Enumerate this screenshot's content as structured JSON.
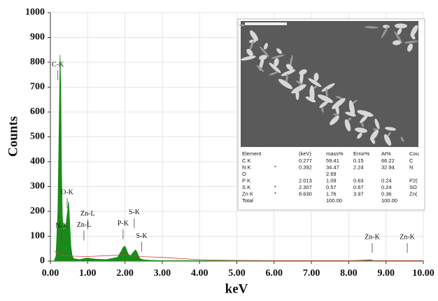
{
  "chart_data": {
    "type": "area",
    "xlabel": "keV",
    "ylabel": "Counts",
    "xlim": [
      0,
      10
    ],
    "ylim": [
      0,
      1000
    ],
    "xticks": [
      {
        "value": 0,
        "label": "0.00"
      },
      {
        "value": 1,
        "label": "1.00"
      },
      {
        "value": 2,
        "label": "2.00"
      },
      {
        "value": 3,
        "label": "3.00"
      },
      {
        "value": 4,
        "label": "4.00"
      },
      {
        "value": 5,
        "label": "5.00"
      },
      {
        "value": 6,
        "label": "6.00"
      },
      {
        "value": 7,
        "label": "7.00"
      },
      {
        "value": 8,
        "label": "8.00"
      },
      {
        "value": 9,
        "label": "9.00"
      },
      {
        "value": 10,
        "label": "10.00"
      }
    ],
    "yticks": [
      0,
      100,
      200,
      300,
      400,
      500,
      600,
      700,
      800,
      900,
      1000
    ],
    "grid": true,
    "series": [
      {
        "color": "#1a8a1a",
        "fill": true,
        "x": [
          0.1,
          0.15,
          0.2,
          0.24,
          0.26,
          0.28,
          0.3,
          0.32,
          0.35,
          0.37,
          0.39,
          0.41,
          0.43,
          0.46,
          0.49,
          0.52,
          0.55,
          0.58,
          0.62,
          0.7,
          0.8,
          0.9,
          1.0,
          1.2,
          1.5,
          1.8,
          1.9,
          1.95,
          2.0,
          2.03,
          2.08,
          2.15,
          2.22,
          2.28,
          2.31,
          2.35,
          2.4,
          2.5,
          2.7,
          3.0,
          4.0,
          5.0,
          6.0,
          7.0,
          8.0,
          8.6,
          8.65,
          9.0,
          10.0
        ],
        "values": [
          0,
          20,
          200,
          600,
          830,
          700,
          350,
          180,
          120,
          130,
          150,
          110,
          160,
          200,
          240,
          150,
          60,
          25,
          10,
          8,
          6,
          10,
          12,
          8,
          6,
          15,
          40,
          55,
          60,
          50,
          30,
          20,
          35,
          45,
          40,
          25,
          10,
          5,
          3,
          2,
          2,
          1,
          1,
          1,
          1,
          5,
          2,
          1,
          1
        ]
      },
      {
        "color": "#d04040",
        "fill": false,
        "x": [
          0.1,
          0.3,
          0.6,
          1.0,
          1.5,
          2.0,
          2.5,
          3.0,
          3.5,
          4.0,
          4.5,
          5.0,
          6.0,
          7.0,
          8.0,
          9.0,
          10.0
        ],
        "values": [
          40,
          25,
          20,
          18,
          22,
          25,
          18,
          15,
          10,
          6,
          4,
          3,
          2,
          2,
          2,
          2,
          2
        ]
      }
    ],
    "annotations": [
      {
        "label": "C-K",
        "x": 0.2,
        "y": 790
      },
      {
        "label": "N-K",
        "x": 0.3,
        "y": 140
      },
      {
        "label": "O-K",
        "x": 0.45,
        "y": 275
      },
      {
        "label": "Zn-L",
        "x": 1.0,
        "y": 190
      },
      {
        "label": "Zn-L",
        "x": 0.9,
        "y": 145
      },
      {
        "label": "P-K",
        "x": 1.95,
        "y": 150
      },
      {
        "label": "S-K",
        "x": 2.25,
        "y": 195
      },
      {
        "label": "S-K",
        "x": 2.45,
        "y": 100
      },
      {
        "label": "Zn-K",
        "x": 8.63,
        "y": 95
      },
      {
        "label": "Zn-K",
        "x": 9.57,
        "y": 95
      }
    ]
  },
  "inset": {
    "columns": [
      "Element",
      null,
      "(keV)",
      "mass%",
      "Error%",
      "At%",
      "Cou"
    ],
    "rows": [
      [
        "C K",
        null,
        "0.277",
        "59.41",
        "0.15",
        "66.22",
        "C"
      ],
      [
        "N K",
        "*",
        "0.392",
        "34.47",
        "2.24",
        "32.94",
        "N"
      ],
      [
        "O",
        null,
        null,
        "2.69",
        null,
        null,
        null
      ],
      [
        "P K",
        null,
        "2.013",
        "1.09",
        "0.63",
        "0.24",
        "P2("
      ],
      [
        "S K",
        "*",
        "2.307",
        "0.57",
        "0.67",
        "0.24",
        "SO"
      ],
      [
        "Zn K",
        "*",
        "8.630",
        "1.76",
        "3.97",
        "0.36",
        "Zn("
      ],
      [
        "Total",
        null,
        null,
        "100.00",
        null,
        "100.00",
        null
      ]
    ]
  }
}
